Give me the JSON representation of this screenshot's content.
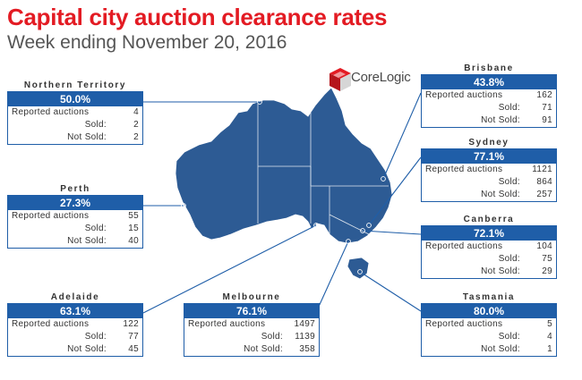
{
  "title": "Capital city auction clearance rates",
  "subtitle": "Week ending November 20, 2016",
  "logo_text": "CoreLogic",
  "colors": {
    "title": "#e31b23",
    "box": "#1f5ea8",
    "map": "#2d5b94",
    "logo_red": "#e31b23"
  },
  "labels": {
    "reported": "Reported auctions",
    "sold": "Sold:",
    "not_sold": "Not Sold:"
  },
  "cities": {
    "northern_territory": {
      "name": "Northern Territory",
      "rate": "50.0%",
      "reported": "4",
      "sold": "2",
      "not_sold": "2"
    },
    "perth": {
      "name": "Perth",
      "rate": "27.3%",
      "reported": "55",
      "sold": "15",
      "not_sold": "40"
    },
    "adelaide": {
      "name": "Adelaide",
      "rate": "63.1%",
      "reported": "122",
      "sold": "77",
      "not_sold": "45"
    },
    "melbourne": {
      "name": "Melbourne",
      "rate": "76.1%",
      "reported": "1497",
      "sold": "1139",
      "not_sold": "358"
    },
    "brisbane": {
      "name": "Brisbane",
      "rate": "43.8%",
      "reported": "162",
      "sold": "71",
      "not_sold": "91"
    },
    "sydney": {
      "name": "Sydney",
      "rate": "77.1%",
      "reported": "1121",
      "sold": "864",
      "not_sold": "257"
    },
    "canberra": {
      "name": "Canberra",
      "rate": "72.1%",
      "reported": "104",
      "sold": "75",
      "not_sold": "29"
    },
    "tasmania": {
      "name": "Tasmania",
      "rate": "80.0%",
      "reported": "5",
      "sold": "4",
      "not_sold": "1"
    }
  }
}
